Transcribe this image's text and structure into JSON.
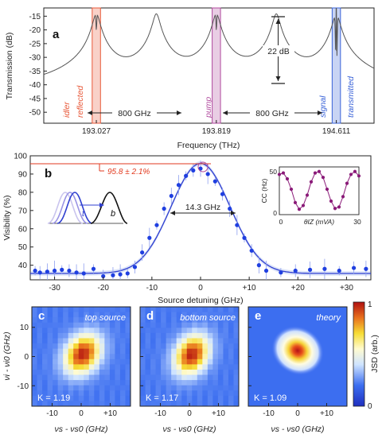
{
  "colors": {
    "idler": "#e8593a",
    "pump": "#b04a9e",
    "signal": "#3a63d8",
    "fit": "#2f3fd0",
    "data": "#1f3fe0",
    "cc": "#8a1a78",
    "annotation_red": "#e23a1f"
  },
  "panel_a": {
    "letter": "a",
    "ylabel": "Transmission (dB)",
    "xlabel": "Frequency (THz)",
    "yticks": [
      "-15",
      "-20",
      "-25",
      "-30",
      "-35",
      "-40",
      "-45",
      "-50"
    ],
    "xticks": [
      "193.027",
      "193.819",
      "194.611"
    ],
    "labels": {
      "idler": "idler",
      "reflected": "reflected",
      "pump": "pump",
      "signal": "signal",
      "transmitted": "transmitted",
      "spacing_left": "800 GHz",
      "spacing_right": "800 GHz",
      "extinction": "22 dB"
    }
  },
  "panel_b": {
    "letter": "b",
    "ylabel": "Visibility (%)",
    "xlabel": "Source detuning (GHz)",
    "yticks": [
      "100",
      "90",
      "80",
      "70",
      "60",
      "50",
      "40"
    ],
    "xticks": [
      "-30",
      "-20",
      "-10",
      "0",
      "+10",
      "+20",
      "+30"
    ],
    "peak_label": "95.8 ± 2.1%",
    "fwhm_label": "14.3 GHz",
    "label_t": "t",
    "label_b": "b",
    "inset": {
      "ylabel": "CC (Hz)",
      "xlabel": "θIZ (mVA)",
      "yticks": [
        "50",
        "0"
      ],
      "xticks": [
        "0",
        "30"
      ]
    }
  },
  "maps": {
    "ylabel": "νi - νi0 (GHz)",
    "xlabel": "νs - νs0 (GHz)",
    "yticks": [
      "10",
      "0",
      "-10"
    ],
    "xticks": [
      "-10",
      "0",
      "+10"
    ],
    "panels": [
      {
        "letter": "c",
        "title": "top source",
        "k_label": "K = 1.19"
      },
      {
        "letter": "d",
        "title": "bottom source",
        "k_label": "K = 1.17"
      },
      {
        "letter": "e",
        "title": "theory",
        "k_label": "K = 1.09"
      }
    ],
    "colorbar": {
      "label": "JSD (arb.)",
      "ticks": [
        "1",
        "0"
      ]
    }
  },
  "chart_data": [
    {
      "type": "line",
      "title": "",
      "xlabel": "Frequency (THz)",
      "ylabel": "Transmission (dB)",
      "xlim": [
        192.68,
        194.86
      ],
      "ylim": [
        -54,
        -12
      ],
      "resonances_thz": [
        193.027,
        193.423,
        193.819,
        194.215,
        194.611
      ],
      "baseline_db": -47,
      "peak_db": -14,
      "dip_markers_thz": {
        "idler": 193.027,
        "pump": 193.819,
        "signal": 194.611
      },
      "extinction_db": 22,
      "fsr_ghz": 800
    },
    {
      "type": "scatter",
      "title": "",
      "xlabel": "Source detuning (GHz)",
      "ylabel": "Visibility (%)",
      "xlim": [
        -35,
        35
      ],
      "ylim": [
        32,
        100
      ],
      "series": [
        {
          "name": "",
          "x": [
            -34,
            -33,
            -31.5,
            -30,
            -28.5,
            -27,
            -25.5,
            -24,
            -22,
            -20,
            -18,
            -16.5,
            -15,
            -13.5,
            -12,
            -10.5,
            -9,
            -7.5,
            -6,
            -4.5,
            -3,
            -1.5,
            0,
            1.5,
            3,
            4.5,
            6,
            7.5,
            9,
            10.5,
            12,
            13.5,
            16.5,
            19.5,
            22.5,
            25.5,
            28.5,
            31.5,
            34
          ],
          "y": [
            37,
            36,
            36.5,
            37,
            37.5,
            37,
            36,
            35.5,
            38,
            34,
            34.5,
            35,
            35.5,
            39,
            47,
            55,
            62,
            71,
            78,
            84,
            89,
            92,
            93,
            90,
            86,
            79,
            71,
            62,
            55,
            48,
            40,
            37,
            36,
            37,
            37.5,
            38,
            37,
            38.5,
            38
          ]
        }
      ],
      "fit": {
        "type": "gaussian",
        "center": 0,
        "fwhm_ghz": 14.3,
        "peak": 95.8,
        "offset": 35.5
      },
      "annotations": [
        "95.8 ± 2.1%",
        "14.3 GHz"
      ],
      "inset": {
        "xlabel": "θIZ (mVA)",
        "ylabel": "CC (Hz)",
        "x": [
          0,
          1.5,
          3,
          4.5,
          6,
          7.5,
          9,
          10.5,
          12,
          13.5,
          15,
          16.5,
          18,
          19.5,
          21,
          22.5,
          24,
          25.5,
          27,
          28.5,
          30
        ],
        "y": [
          50,
          52,
          44,
          30,
          12,
          3,
          8,
          22,
          40,
          52,
          54,
          46,
          30,
          14,
          4,
          6,
          20,
          38,
          50,
          54,
          48
        ]
      }
    },
    {
      "type": "heatmap",
      "title": "top source",
      "xlabel": "νs - νs0 (GHz)",
      "ylabel": "νi - νi0 (GHz)",
      "xlim": [
        -17,
        17
      ],
      "ylim": [
        -17,
        17
      ],
      "peak_center": [
        0,
        0
      ],
      "annotation": "K = 1.19",
      "colorbar_range": [
        0,
        1
      ]
    },
    {
      "type": "heatmap",
      "title": "bottom source",
      "xlabel": "νs - νs0 (GHz)",
      "ylabel": "νi - νi0 (GHz)",
      "xlim": [
        -17,
        17
      ],
      "ylim": [
        -17,
        17
      ],
      "peak_center": [
        0,
        0
      ],
      "annotation": "K = 1.17",
      "colorbar_range": [
        0,
        1
      ]
    },
    {
      "type": "heatmap",
      "title": "theory",
      "xlabel": "νs - νs0 (GHz)",
      "ylabel": "νi - νi0 (GHz)",
      "xlim": [
        -17,
        17
      ],
      "ylim": [
        -17,
        17
      ],
      "peak_center": [
        0,
        0
      ],
      "annotation": "K = 1.09",
      "colorbar_range": [
        0,
        1
      ]
    }
  ]
}
